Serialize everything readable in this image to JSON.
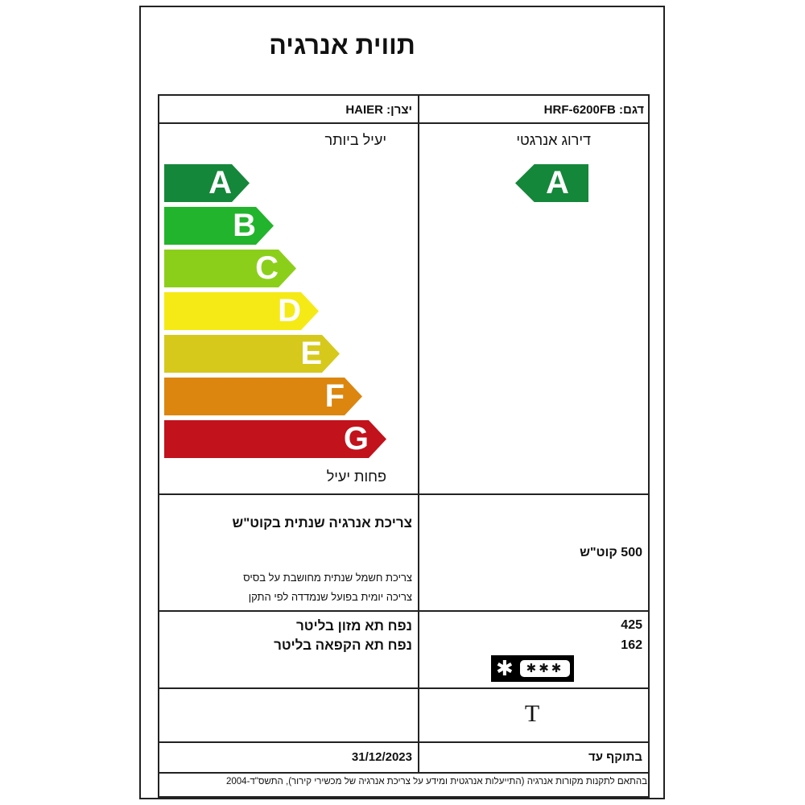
{
  "title": "תווית אנרגיה",
  "header": {
    "manufacturer": "יצרן: HAIER",
    "model": "דגם: HRF-6200FB"
  },
  "scale": {
    "top_label": "יעיל ביותר",
    "bottom_label": "פחות יעיל",
    "classes": [
      {
        "letter": "A",
        "color": "#15873a"
      },
      {
        "letter": "B",
        "color": "#22b42c"
      },
      {
        "letter": "C",
        "color": "#8ccf1a"
      },
      {
        "letter": "D",
        "color": "#f5ea15"
      },
      {
        "letter": "E",
        "color": "#d6c91c"
      },
      {
        "letter": "F",
        "color": "#dc860f"
      },
      {
        "letter": "G",
        "color": "#c2121c"
      }
    ]
  },
  "rating": {
    "label": "דירוג אנרגטי",
    "value": "A",
    "color": "#15873a"
  },
  "consumption": {
    "label": "צריכת אנרגיה שנתית בקוט\"ש",
    "value": "500 קוט\"ש",
    "note1": "צריכת חשמל שנתית מחושבת על בסיס",
    "note2": "צריכה יומית בפועל שנמדדה לפי התקן"
  },
  "volumes": {
    "fresh_label": "נפח תא מזון בליטר",
    "fresh_value": "425",
    "freezer_label": "נפח תא הקפאה בליטר",
    "freezer_value": "162",
    "freezer_stars": "✱ ✱✱✱",
    "star_icon": "freezer-star-rating-icon"
  },
  "climate": {
    "value": "T"
  },
  "validity": {
    "label": "בתוקף עד",
    "date": "31/12/2023"
  },
  "footer": "בהתאם לתקנות מקורות אנרגיה (התייעלות אנרגטית ומידע על צריכת אנרגיה של מכשירי קירור), התשס\"ד-2004"
}
